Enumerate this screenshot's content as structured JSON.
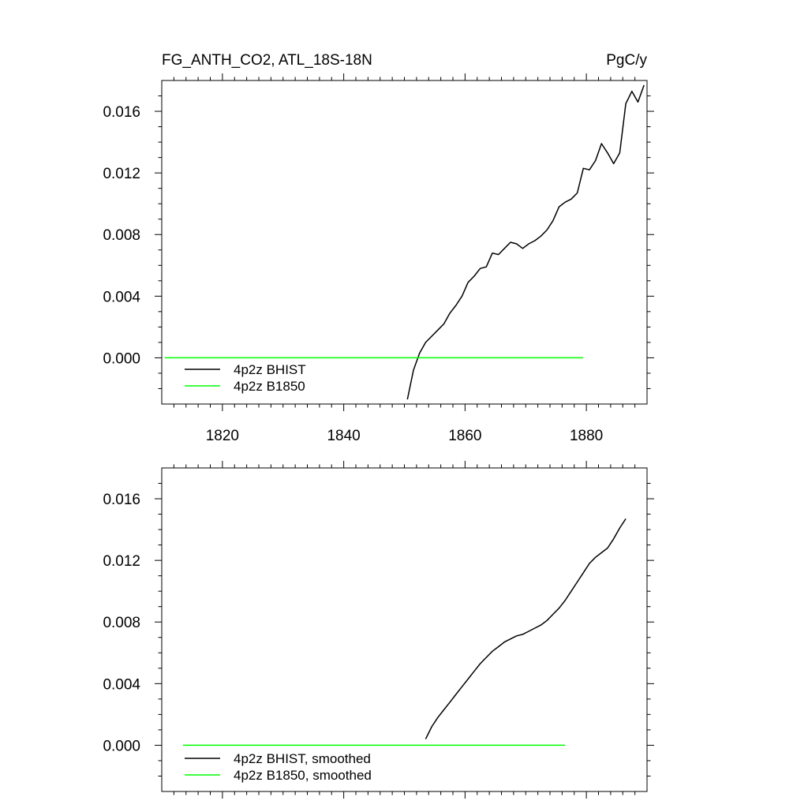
{
  "chart_data": [
    {
      "type": "line",
      "title": "FG_ANTH_CO2, ATL_18S-18N",
      "units": "PgC/y",
      "xlim": [
        1810,
        1890
      ],
      "ylim": [
        -0.003,
        0.018
      ],
      "x_tick_labels": [
        "1820",
        "1840",
        "1860",
        "1880"
      ],
      "x_ticks": [
        1820,
        1840,
        1860,
        1880
      ],
      "y_tick_labels": [
        "0.000",
        "0.004",
        "0.008",
        "0.012",
        "0.016"
      ],
      "y_ticks": [
        0.0,
        0.004,
        0.008,
        0.012,
        0.016
      ],
      "grid": false,
      "legend_position": "lower-left",
      "series": [
        {
          "name": "4p2z BHIST",
          "color": "#000000",
          "x": [
            1850.5,
            1851.5,
            1852.5,
            1853.5,
            1854.5,
            1855.5,
            1856.5,
            1857.5,
            1858.5,
            1859.5,
            1860.5,
            1861.5,
            1862.5,
            1863.5,
            1864.5,
            1865.5,
            1866.5,
            1867.5,
            1868.5,
            1869.5,
            1870.5,
            1871.5,
            1872.5,
            1873.5,
            1874.5,
            1875.5,
            1876.5,
            1877.5,
            1878.5,
            1879.5,
            1880.5,
            1881.5,
            1882.5,
            1883.5,
            1884.5,
            1885.5,
            1886.5,
            1887.5,
            1888.5,
            1889.5
          ],
          "y": [
            -0.0027,
            -0.0008,
            0.0003,
            0.001,
            0.0014,
            0.0018,
            0.0022,
            0.0029,
            0.0034,
            0.004,
            0.0049,
            0.0053,
            0.0058,
            0.0059,
            0.0068,
            0.0067,
            0.0071,
            0.0075,
            0.0074,
            0.0071,
            0.0074,
            0.0076,
            0.0079,
            0.0083,
            0.0089,
            0.0098,
            0.0101,
            0.0103,
            0.0107,
            0.0123,
            0.0122,
            0.0128,
            0.0139,
            0.0133,
            0.0126,
            0.0133,
            0.0165,
            0.0173,
            0.0166,
            0.0177
          ]
        },
        {
          "name": "4p2z B1850",
          "color": "#00ff00",
          "x": [
            1810.5,
            1879.5
          ],
          "y": [
            0.0,
            0.0
          ]
        }
      ]
    },
    {
      "type": "line",
      "xlim": [
        1810,
        1890
      ],
      "ylim": [
        -0.003,
        0.018
      ],
      "x_ticks": [
        1820,
        1840,
        1860,
        1880
      ],
      "y_tick_labels": [
        "0.000",
        "0.004",
        "0.008",
        "0.012",
        "0.016"
      ],
      "y_ticks": [
        0.0,
        0.004,
        0.008,
        0.012,
        0.016
      ],
      "grid": false,
      "legend_position": "lower-left",
      "series": [
        {
          "name": "4p2z BHIST, smoothed",
          "color": "#000000",
          "x": [
            1853.5,
            1854.5,
            1855.5,
            1856.5,
            1857.5,
            1858.5,
            1859.5,
            1860.5,
            1861.5,
            1862.5,
            1863.5,
            1864.5,
            1865.5,
            1866.5,
            1867.5,
            1868.5,
            1869.5,
            1870.5,
            1871.5,
            1872.5,
            1873.5,
            1874.5,
            1875.5,
            1876.5,
            1877.5,
            1878.5,
            1879.5,
            1880.5,
            1881.5,
            1882.5,
            1883.5,
            1884.5,
            1885.5,
            1886.5
          ],
          "y": [
            0.0004,
            0.0012,
            0.0018,
            0.0023,
            0.0028,
            0.0033,
            0.0038,
            0.0043,
            0.0048,
            0.0053,
            0.0057,
            0.0061,
            0.0064,
            0.0067,
            0.0069,
            0.0071,
            0.0072,
            0.0074,
            0.0076,
            0.0078,
            0.0081,
            0.0085,
            0.0089,
            0.0094,
            0.01,
            0.0106,
            0.0112,
            0.0118,
            0.0122,
            0.0125,
            0.0128,
            0.0134,
            0.0141,
            0.0147
          ]
        },
        {
          "name": "4p2z B1850, smoothed",
          "color": "#00ff00",
          "x": [
            1813.5,
            1876.5
          ],
          "y": [
            0.0,
            0.0
          ]
        }
      ]
    }
  ]
}
